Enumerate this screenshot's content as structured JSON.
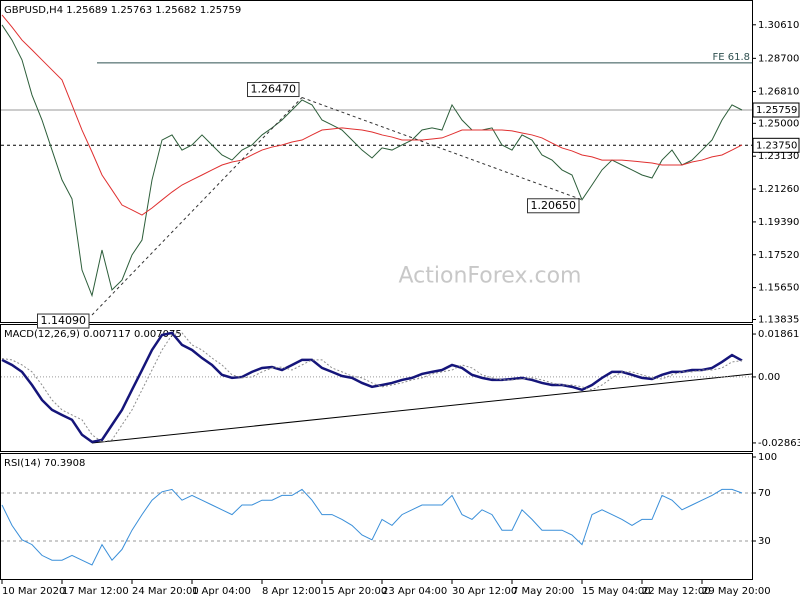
{
  "chart_data": [
    {
      "type": "line",
      "title": "GBPUSD,H4  1.25689 1.25763 1.25682 1.25759",
      "watermark": "ActionForex.com",
      "categories": [
        "10 Mar 2020",
        null,
        null,
        null,
        null,
        null,
        "17 Mar 12:00",
        null,
        null,
        null,
        null,
        null,
        null,
        "24 Mar 20:00",
        null,
        null,
        null,
        null,
        null,
        "1 Apr 04:00",
        null,
        null,
        null,
        null,
        null,
        null,
        "8 Apr 12:00",
        null,
        null,
        null,
        null,
        null,
        "15 Apr 20:00",
        null,
        null,
        null,
        null,
        null,
        "23 Apr 04:00",
        null,
        null,
        null,
        null,
        null,
        null,
        "30 Apr 12:00",
        null,
        null,
        null,
        null,
        null,
        "7 May 20:00",
        null,
        null,
        null,
        null,
        null,
        null,
        "15 May 04:00",
        null,
        null,
        null,
        null,
        null,
        "22 May 12:00",
        null,
        null,
        null,
        null,
        null,
        "29 May 20:00",
        null,
        null,
        null,
        null
      ],
      "series": [
        {
          "color": "#2d5e3a",
          "values": [
            1.306,
            1.2974,
            1.2861,
            1.2661,
            1.2519,
            1.2348,
            1.2178,
            1.207,
            1.1665,
            1.152,
            1.1779,
            1.1552,
            1.1608,
            1.1751,
            1.1836,
            1.2178,
            1.2405,
            1.2434,
            1.2348,
            1.2377,
            1.2434,
            1.2377,
            1.232,
            1.2291,
            1.2348,
            1.2377,
            1.2434,
            1.2474,
            1.2519,
            1.2576,
            1.2633,
            1.2605,
            1.2519,
            1.2491,
            1.2462,
            1.2405,
            1.2348,
            1.2303,
            1.236,
            1.2348,
            1.2377,
            1.2405,
            1.2462,
            1.2474,
            1.2462,
            1.2605,
            1.2519,
            1.2462,
            1.2462,
            1.2474,
            1.2377,
            1.2348,
            1.2434,
            1.2405,
            1.232,
            1.2291,
            1.2235,
            1.2206,
            1.2065,
            1.2149,
            1.2235,
            1.2291,
            1.2263,
            1.2235,
            1.2206,
            1.2189,
            1.2291,
            1.2348,
            1.2263,
            1.2291,
            1.2348,
            1.2405,
            1.2519,
            1.2605,
            1.2576
          ]
        },
        {
          "color": "#e03030",
          "values": [
            1.3117,
            1.3048,
            1.2974,
            1.2918,
            1.2861,
            1.2804,
            1.2747,
            1.2605,
            1.2462,
            1.2337,
            1.2206,
            1.2121,
            1.2035,
            1.2007,
            1.1978,
            1.2018,
            1.2064,
            1.2109,
            1.2149,
            1.2178,
            1.2206,
            1.2235,
            1.2263,
            1.228,
            1.2291,
            1.232,
            1.2348,
            1.2365,
            1.2377,
            1.2394,
            1.2405,
            1.2434,
            1.2462,
            1.2468,
            1.2474,
            1.2468,
            1.2462,
            1.2451,
            1.2434,
            1.2422,
            1.2405,
            1.2405,
            1.2405,
            1.2411,
            1.2417,
            1.2439,
            1.2462,
            1.2462,
            1.2462,
            1.2462,
            1.2462,
            1.2457,
            1.2445,
            1.2434,
            1.2417,
            1.2388,
            1.236,
            1.2343,
            1.232,
            1.2309,
            1.2291,
            1.2291,
            1.2291,
            1.2286,
            1.228,
            1.2274,
            1.2263,
            1.2263,
            1.2263,
            1.228,
            1.2291,
            1.2309,
            1.232,
            1.2348,
            1.2377
          ]
        }
      ],
      "ylim": [
        1.1375,
        1.3185
      ],
      "yticks": [
        {
          "value": 1.3061,
          "label": "1.30610"
        },
        {
          "value": 1.287,
          "label": "1.28700"
        },
        {
          "value": 1.2681,
          "label": "1.26810"
        },
        {
          "value": 1.25,
          "label": "1.25000"
        },
        {
          "value": 1.2313,
          "label": "1.23130"
        },
        {
          "value": 1.2126,
          "label": "1.21260"
        },
        {
          "value": 1.1939,
          "label": "1.19390"
        },
        {
          "value": 1.1752,
          "label": "1.17520"
        },
        {
          "value": 1.1565,
          "label": "1.15650"
        },
        {
          "value": 1.13835,
          "label": "1.13835"
        }
      ],
      "price_marks": [
        {
          "value": 1.25759,
          "label": "1.25759",
          "color": "#9a9a9a",
          "dashed": false
        },
        {
          "value": 1.2375,
          "label": "1.23750",
          "color": "#000000",
          "dashed": true
        }
      ],
      "level": {
        "value": 1.2844,
        "label": "FE 61.8",
        "color": "#2f5050"
      },
      "annotations": [
        {
          "value": 1.1409,
          "label": "1.14090"
        },
        {
          "value": 1.2647,
          "label": "1.26470"
        },
        {
          "value": 1.2065,
          "label": "1.20650"
        }
      ]
    },
    {
      "type": "line",
      "title": "MACD(12,26,9) 0.007117 0.007075",
      "series": [
        {
          "color": "#15157a",
          "values": [
            0.0074,
            0.0052,
            0.0022,
            -0.0035,
            -0.01,
            -0.0143,
            -0.0165,
            -0.0186,
            -0.0251,
            -0.0282,
            -0.0273,
            -0.0208,
            -0.0143,
            -0.0056,
            0.003,
            0.0117,
            0.0182,
            0.0191,
            0.0139,
            0.0117,
            0.0082,
            0.0052,
            0.0009,
            -0.0004,
            0.0,
            0.0022,
            0.0039,
            0.0043,
            0.003,
            0.0052,
            0.0074,
            0.0074,
            0.0039,
            0.0022,
            0.0004,
            -0.0004,
            -0.0026,
            -0.0043,
            -0.0035,
            -0.0026,
            -0.0013,
            -0.0004,
            0.0013,
            0.0022,
            0.003,
            0.0052,
            0.0039,
            0.0009,
            -0.0004,
            -0.0013,
            -0.0013,
            -0.0009,
            -0.0004,
            -0.0013,
            -0.0026,
            -0.0035,
            -0.0035,
            -0.0043,
            -0.0056,
            -0.0035,
            -0.0004,
            0.0022,
            0.0022,
            0.0009,
            -0.0004,
            -0.0009,
            0.0009,
            0.0022,
            0.0022,
            0.003,
            0.003,
            0.0039,
            0.0065,
            0.0095,
            0.0071
          ]
        },
        {
          "color": "#8c8c8c",
          "values": [
            0.008,
            0.0074,
            0.0052,
            0.0022,
            -0.0035,
            -0.01,
            -0.0143,
            -0.0165,
            -0.0186,
            -0.0251,
            -0.0282,
            -0.0273,
            -0.0208,
            -0.0143,
            -0.0056,
            0.003,
            0.0117,
            0.0182,
            0.0191,
            0.0139,
            0.0117,
            0.0082,
            0.0052,
            0.0009,
            -0.0004,
            0.0,
            0.0022,
            0.0039,
            0.0043,
            0.003,
            0.0052,
            0.0074,
            0.0074,
            0.0039,
            0.0022,
            0.0004,
            -0.0004,
            -0.0026,
            -0.0043,
            -0.0035,
            -0.0026,
            -0.0013,
            -0.0004,
            0.0013,
            0.0022,
            0.003,
            0.0052,
            0.0039,
            0.0009,
            -0.0004,
            -0.0013,
            -0.0013,
            -0.0009,
            -0.0004,
            -0.0013,
            -0.0026,
            -0.0035,
            -0.0035,
            -0.0043,
            -0.0056,
            -0.0035,
            -0.0004,
            0.0022,
            0.0022,
            0.0009,
            -0.0004,
            -0.0009,
            0.0009,
            0.0022,
            0.0022,
            0.003,
            0.003,
            0.0039,
            0.0065,
            0.0071
          ]
        }
      ],
      "ylim": [
        -0.0317,
        0.0221
      ],
      "yticks": [
        0.018615,
        {
          "value": 0,
          "label": "0.00"
        },
        -0.028631
      ],
      "levels": [
        0
      ]
    },
    {
      "type": "line",
      "title": "RSI(14) 70.3908",
      "series": [
        {
          "color": "#3a8fd9",
          "values": [
            60,
            43,
            31,
            27,
            18,
            14,
            14,
            18,
            14,
            10,
            27,
            14,
            23,
            39,
            52,
            64,
            71,
            73,
            64,
            68,
            64,
            60,
            56,
            52,
            60,
            60,
            64,
            64,
            68,
            68,
            73,
            64,
            52,
            52,
            48,
            43,
            35,
            31,
            48,
            43,
            52,
            56,
            60,
            60,
            60,
            68,
            52,
            48,
            56,
            52,
            39,
            39,
            56,
            48,
            39,
            39,
            39,
            35,
            27,
            52,
            56,
            52,
            48,
            43,
            48,
            48,
            68,
            64,
            56,
            60,
            64,
            68,
            73,
            73,
            70
          ]
        }
      ],
      "ylim": [
        0,
        100
      ],
      "yticks": [
        100,
        70,
        30
      ],
      "levels": [
        70,
        30
      ]
    }
  ]
}
